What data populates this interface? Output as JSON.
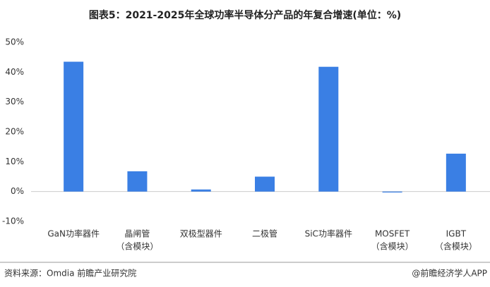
{
  "chart_data": {
    "type": "bar",
    "title": "图表5：2021-2025年全球功率半导体分产品的年复合增速(单位：%)",
    "categories": [
      [
        "GaN功率器件"
      ],
      [
        "晶闸管",
        "（含模块）"
      ],
      [
        "双极型器件"
      ],
      [
        "二极管"
      ],
      [
        "SiC功率器件"
      ],
      [
        "MOSFET",
        "（含模块）"
      ],
      [
        "IGBT",
        "（含模块）"
      ]
    ],
    "values": [
      43.5,
      6.8,
      0.7,
      5,
      41.8,
      -0.3,
      12.7
    ],
    "color": "#3a7fe4",
    "ylim": [
      -10,
      50
    ],
    "yticks": [
      {
        "value": -10,
        "label": "-10%"
      },
      {
        "value": 0,
        "label": "0%"
      },
      {
        "value": 10,
        "label": "10%"
      },
      {
        "value": 20,
        "label": "20%"
      },
      {
        "value": 30,
        "label": "30%"
      },
      {
        "value": 40,
        "label": "40%"
      },
      {
        "value": 50,
        "label": "50%"
      }
    ],
    "grid": false,
    "source": "资料来源：Omdia 前瞻产业研究院",
    "credit": "@前瞻经济学人APP"
  }
}
